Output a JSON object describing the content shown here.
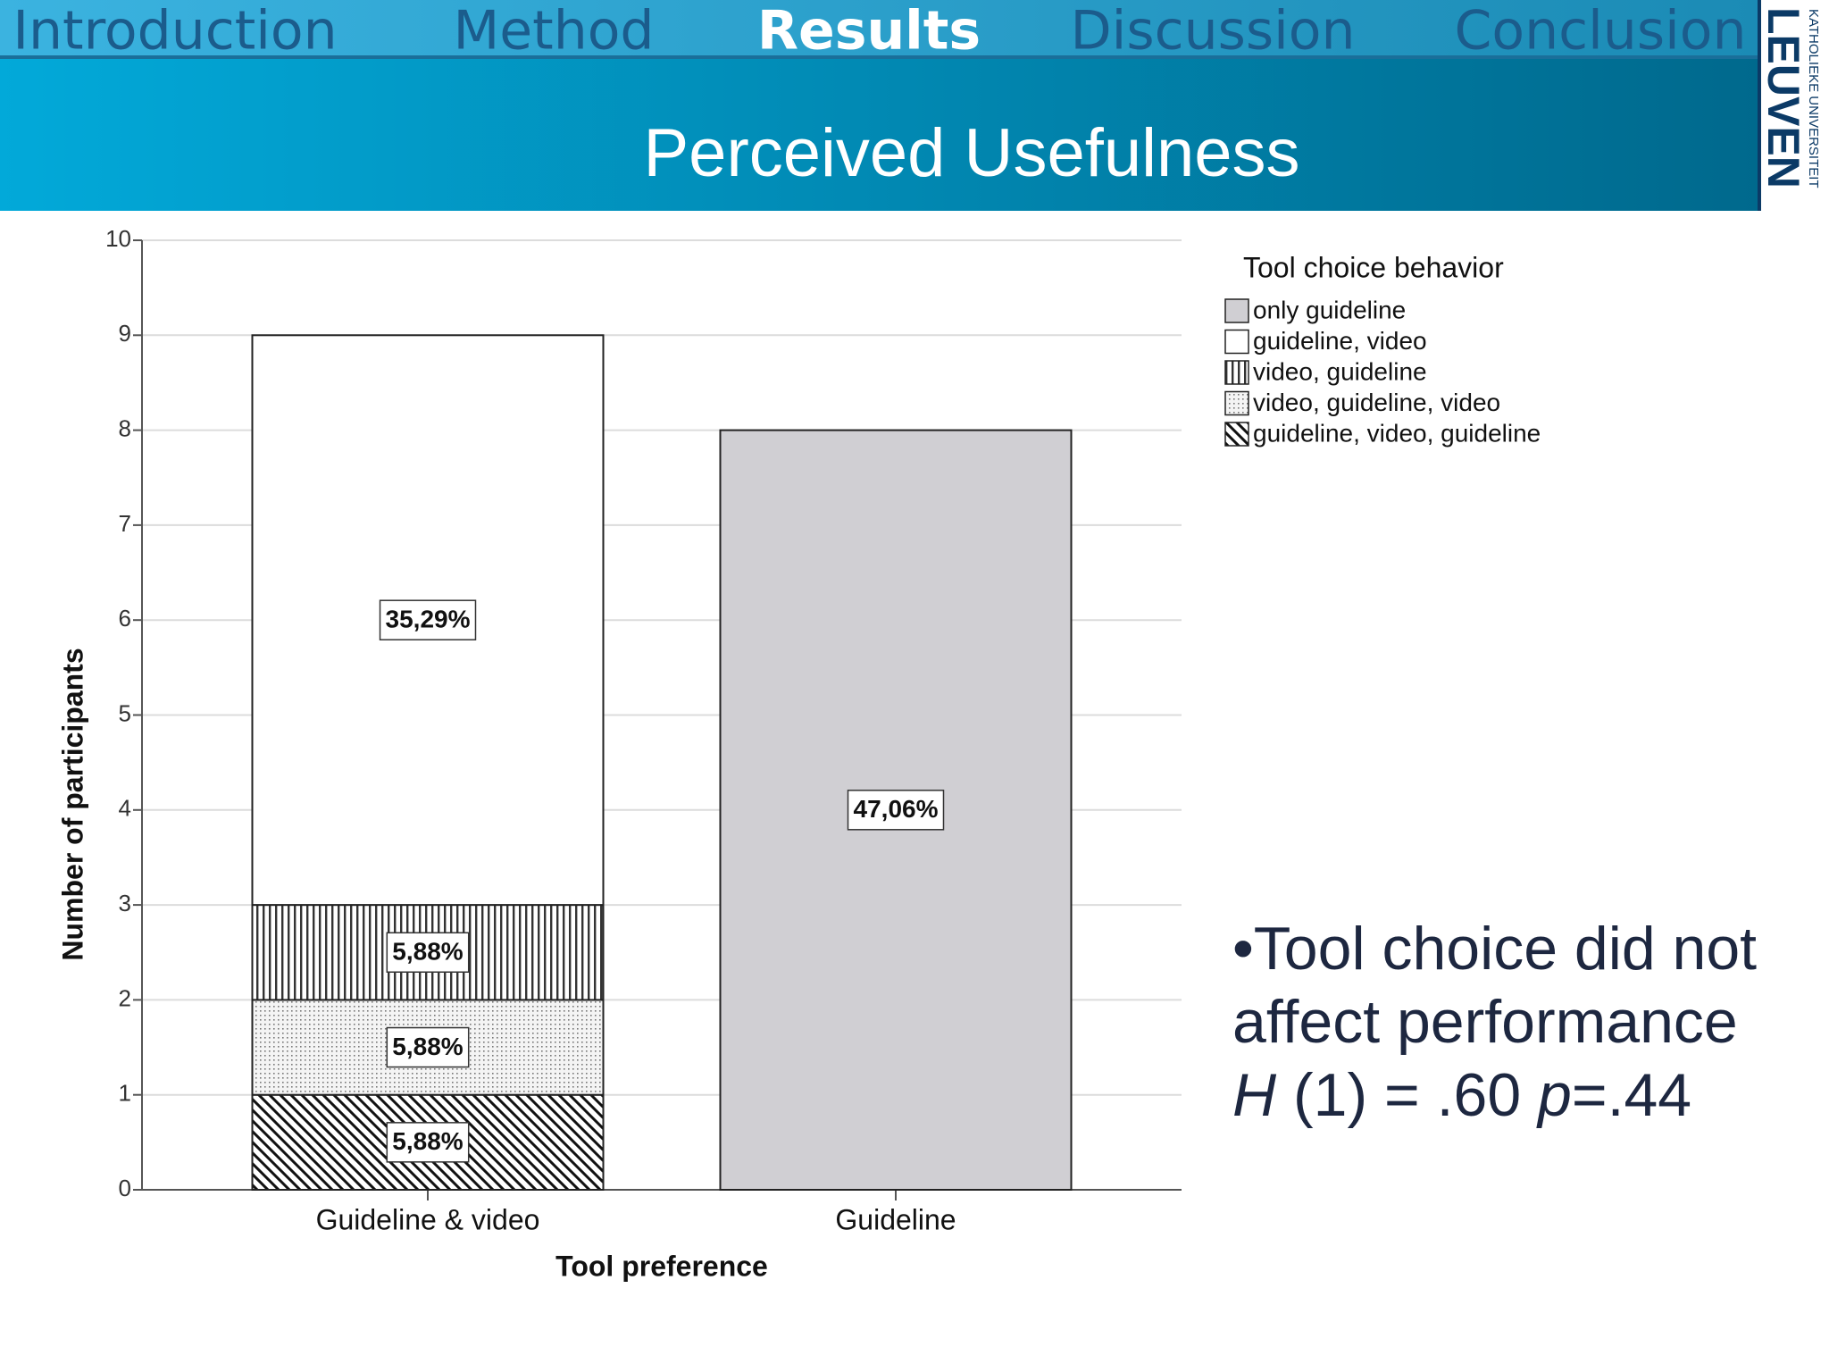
{
  "nav": [
    "Introduction",
    "Method",
    "Results",
    "Discussion",
    "Conclusion"
  ],
  "active_nav": 2,
  "slide_title": "Perceived Usefulness",
  "logo": {
    "small": "KATHOLIEKE UNIVERSITEIT",
    "big": "LEUVEN"
  },
  "bullet": {
    "lines": [
      "•Tool choice did not",
      "affect performance"
    ],
    "stat": [
      "H",
      " (1) = .60 ",
      "p",
      "=.44"
    ]
  },
  "chart_data": {
    "type": "stacked_bar",
    "x_label": "Tool preference",
    "y_label": "Number of participants",
    "categories": [
      "Guideline & video",
      "Guideline"
    ],
    "ylim": [
      0,
      10
    ],
    "yticks": [
      0,
      1,
      2,
      3,
      4,
      5,
      6,
      7,
      8,
      9,
      10
    ],
    "grid": true,
    "legend_title": "Tool choice behavior",
    "legend": "top-right",
    "legend_order": [
      4,
      3,
      2,
      1,
      0
    ],
    "series": [
      {
        "name": "guideline, video, guideline",
        "color": "#222222",
        "pattern": "diagonal",
        "values": [
          1,
          0
        ],
        "labels": [
          "5,88%",
          null
        ]
      },
      {
        "name": "video, guideline, video",
        "color": "#888888",
        "pattern": "dots",
        "values": [
          1,
          0
        ],
        "labels": [
          "5,88%",
          null
        ]
      },
      {
        "name": "video, guideline",
        "color": "#333333",
        "pattern": "vertical",
        "values": [
          1,
          0
        ],
        "labels": [
          "5,88%",
          null
        ]
      },
      {
        "name": "guideline, video",
        "color": "#ffffff",
        "pattern": "solid",
        "values": [
          6,
          0
        ],
        "labels": [
          "35,29%",
          null
        ]
      },
      {
        "name": "only guideline",
        "color": "#d0cfd3",
        "pattern": "solid",
        "values": [
          0,
          8
        ],
        "labels": [
          null,
          "47,06%"
        ]
      }
    ]
  }
}
